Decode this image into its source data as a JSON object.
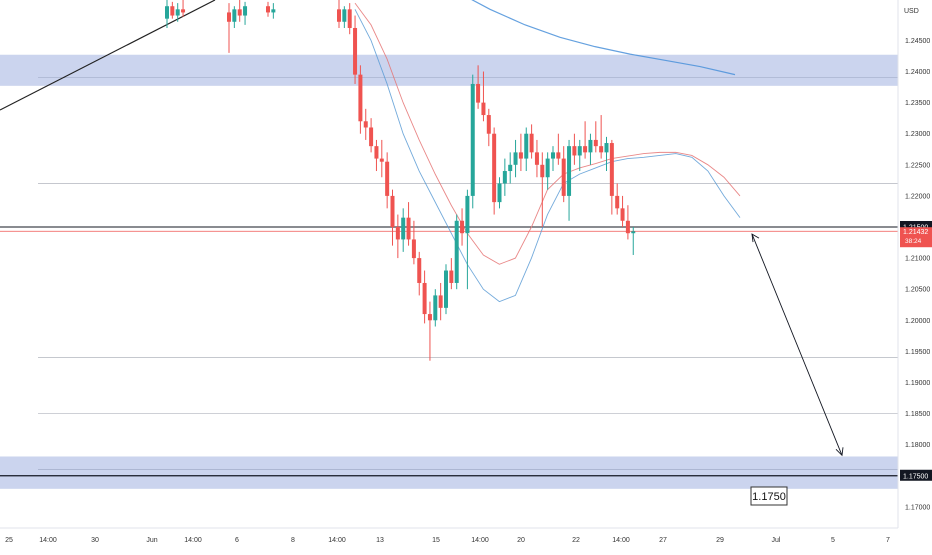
{
  "currency_label": "USD",
  "price_badge": {
    "price": "1.21500"
  },
  "current_badge": {
    "price": "1.21432",
    "countdown": "38:24"
  },
  "target_badge": {
    "price": "1.17500"
  },
  "target_callout": "1.1750",
  "colors": {
    "up": "#26a69a",
    "down": "#ef5350",
    "zone": "#c5cfec",
    "ma_blue": "#5b9bd5",
    "ma_red": "#e57373",
    "ma_long": "#4a90d9"
  },
  "chart_data": {
    "type": "candlestick",
    "symbol_quote": "USD",
    "y_axis": {
      "range": [
        1.1666,
        1.2515
      ],
      "ticks": [
        "1.24500",
        "1.24000",
        "1.23500",
        "1.23000",
        "1.22500",
        "1.22000",
        "1.21500",
        "1.21000",
        "1.20500",
        "1.20000",
        "1.19500",
        "1.19000",
        "1.18500",
        "1.18000",
        "1.17500",
        "1.17000"
      ]
    },
    "x_axis": {
      "ticks": [
        "25",
        "14:00",
        "30",
        "Jun",
        "14:00",
        "6",
        "8",
        "14:00",
        "13",
        "15",
        "14:00",
        "20",
        "22",
        "14:00",
        "27",
        "29",
        "Jul",
        "5",
        "7"
      ]
    },
    "supply_zone": [
      1.2377,
      1.2427
    ],
    "demand_zone": [
      1.1729,
      1.1781
    ],
    "horizontal_levels": [
      1.222,
      1.194,
      1.185
    ],
    "current_price": 1.21432,
    "marked_level": 1.215,
    "target_level": 1.175,
    "projection": {
      "from": 1.2145,
      "to": 1.177
    },
    "candles": [
      [
        1.2485,
        1.2515,
        1.247,
        1.2505
      ],
      [
        1.2505,
        1.2512,
        1.2485,
        1.249
      ],
      [
        1.249,
        1.251,
        1.248,
        1.25
      ],
      [
        1.25,
        1.2515,
        1.2488,
        1.2495
      ],
      [
        1.2495,
        1.251,
        1.243,
        1.248
      ],
      [
        1.248,
        1.2505,
        1.247,
        1.25
      ],
      [
        1.25,
        1.2515,
        1.248,
        1.249
      ],
      [
        1.249,
        1.2512,
        1.2475,
        1.2505
      ],
      [
        1.2505,
        1.2512,
        1.2488,
        1.2495
      ],
      [
        1.2495,
        1.251,
        1.2485,
        1.25
      ],
      [
        1.25,
        1.2515,
        1.247,
        1.248
      ],
      [
        1.248,
        1.2505,
        1.247,
        1.25
      ],
      [
        1.25,
        1.251,
        1.246,
        1.247
      ],
      [
        1.247,
        1.249,
        1.238,
        1.2395
      ],
      [
        1.2395,
        1.241,
        1.23,
        1.232
      ],
      [
        1.232,
        1.234,
        1.229,
        1.231
      ],
      [
        1.231,
        1.2325,
        1.227,
        1.228
      ],
      [
        1.228,
        1.229,
        1.224,
        1.226
      ],
      [
        1.226,
        1.229,
        1.223,
        1.2255
      ],
      [
        1.2255,
        1.227,
        1.218,
        1.22
      ],
      [
        1.22,
        1.221,
        1.212,
        1.215
      ],
      [
        1.215,
        1.217,
        1.21,
        1.213
      ],
      [
        1.213,
        1.218,
        1.211,
        1.2165
      ],
      [
        1.2165,
        1.219,
        1.212,
        1.213
      ],
      [
        1.213,
        1.216,
        1.209,
        1.21
      ],
      [
        1.21,
        1.211,
        1.204,
        1.206
      ],
      [
        1.206,
        1.208,
        1.1995,
        1.201
      ],
      [
        1.201,
        1.203,
        1.1935,
        1.2
      ],
      [
        1.2,
        1.205,
        1.199,
        1.204
      ],
      [
        1.204,
        1.206,
        1.2,
        1.202
      ],
      [
        1.202,
        1.209,
        1.201,
        1.208
      ],
      [
        1.208,
        1.21,
        1.205,
        1.206
      ],
      [
        1.206,
        1.217,
        1.205,
        1.216
      ],
      [
        1.216,
        1.218,
        1.212,
        1.214
      ],
      [
        1.214,
        1.221,
        1.205,
        1.22
      ],
      [
        1.22,
        1.2395,
        1.218,
        1.238
      ],
      [
        1.238,
        1.241,
        1.234,
        1.235
      ],
      [
        1.235,
        1.24,
        1.232,
        1.233
      ],
      [
        1.233,
        1.234,
        1.228,
        1.23
      ],
      [
        1.23,
        1.231,
        1.217,
        1.219
      ],
      [
        1.219,
        1.223,
        1.218,
        1.222
      ],
      [
        1.222,
        1.226,
        1.22,
        1.224
      ],
      [
        1.224,
        1.227,
        1.222,
        1.225
      ],
      [
        1.225,
        1.229,
        1.223,
        1.227
      ],
      [
        1.227,
        1.23,
        1.224,
        1.226
      ],
      [
        1.226,
        1.231,
        1.224,
        1.23
      ],
      [
        1.23,
        1.2315,
        1.226,
        1.227
      ],
      [
        1.227,
        1.229,
        1.223,
        1.225
      ],
      [
        1.225,
        1.227,
        1.215,
        1.223
      ],
      [
        1.223,
        1.227,
        1.221,
        1.226
      ],
      [
        1.226,
        1.228,
        1.224,
        1.227
      ],
      [
        1.227,
        1.23,
        1.225,
        1.226
      ],
      [
        1.226,
        1.228,
        1.219,
        1.22
      ],
      [
        1.22,
        1.229,
        1.216,
        1.228
      ],
      [
        1.228,
        1.23,
        1.225,
        1.2265
      ],
      [
        1.2265,
        1.229,
        1.224,
        1.228
      ],
      [
        1.228,
        1.232,
        1.226,
        1.227
      ],
      [
        1.227,
        1.23,
        1.225,
        1.229
      ],
      [
        1.229,
        1.232,
        1.227,
        1.228
      ],
      [
        1.228,
        1.233,
        1.226,
        1.227
      ],
      [
        1.227,
        1.2295,
        1.224,
        1.2285
      ],
      [
        1.2285,
        1.229,
        1.217,
        1.22
      ],
      [
        1.22,
        1.222,
        1.217,
        1.218
      ],
      [
        1.218,
        1.22,
        1.215,
        1.216
      ],
      [
        1.216,
        1.2185,
        1.213,
        1.214
      ],
      [
        1.214,
        1.215,
        1.2105,
        1.2143
      ]
    ],
    "moving_averages": [
      {
        "name": "fast",
        "color": "#5b9bd5",
        "values": [
          1.25,
          1.245,
          1.238,
          1.23,
          1.224,
          1.219,
          1.214,
          1.209,
          1.205,
          1.203,
          1.204,
          1.21,
          1.217,
          1.222,
          1.2235,
          1.2245,
          1.2255,
          1.226,
          1.2262,
          1.2265,
          1.2268,
          1.2262,
          1.224,
          1.22,
          1.2165
        ]
      },
      {
        "name": "slow",
        "color": "#e57373",
        "values": [
          1.251,
          1.2475,
          1.242,
          1.235,
          1.229,
          1.2235,
          1.2185,
          1.214,
          1.2105,
          1.209,
          1.21,
          1.215,
          1.221,
          1.2235,
          1.2245,
          1.2252,
          1.226,
          1.2264,
          1.2268,
          1.227,
          1.227,
          1.2265,
          1.225,
          1.223,
          1.22
        ]
      },
      {
        "name": "long",
        "color": "#4a90d9",
        "values": [
          1.253,
          1.25,
          1.2475,
          1.2455,
          1.244,
          1.2428,
          1.2418,
          1.2408,
          1.2395
        ]
      }
    ]
  }
}
